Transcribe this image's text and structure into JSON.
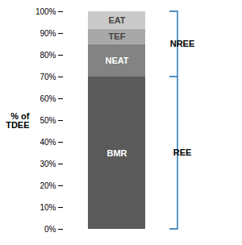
{
  "chart_data": {
    "type": "bar",
    "stacked": true,
    "ylabel": "% of\nTDEE",
    "categories": [
      null
    ],
    "series": [
      {
        "name": "BMR",
        "color": "#5a5a5a",
        "values": [
          70
        ]
      },
      {
        "name": "NEAT",
        "color": "#838383",
        "values": [
          15
        ]
      },
      {
        "name": "TEF",
        "color": "#a8a8a8",
        "values": [
          7
        ]
      },
      {
        "name": "EAT",
        "color": "#cacaca",
        "values": [
          8
        ]
      }
    ],
    "ylim": [
      0,
      100
    ],
    "yticks": [
      {
        "value": 0,
        "label": "0%"
      },
      {
        "value": 10,
        "label": "10%"
      },
      {
        "value": 20,
        "label": "20%"
      },
      {
        "value": 30,
        "label": "30%"
      },
      {
        "value": 40,
        "label": "40%"
      },
      {
        "value": 50,
        "label": "50%"
      },
      {
        "value": 60,
        "label": "60%"
      },
      {
        "value": 70,
        "label": "70%"
      },
      {
        "value": 80,
        "label": "80%"
      },
      {
        "value": 90,
        "label": "90%"
      },
      {
        "value": 100,
        "label": "100%"
      }
    ],
    "annotations": [
      {
        "text": "NREE",
        "y": [
          70,
          100
        ],
        "color": "#4f90c8"
      },
      {
        "text": "REE",
        "y": [
          0,
          70
        ],
        "color": "#4f90c8"
      }
    ]
  }
}
